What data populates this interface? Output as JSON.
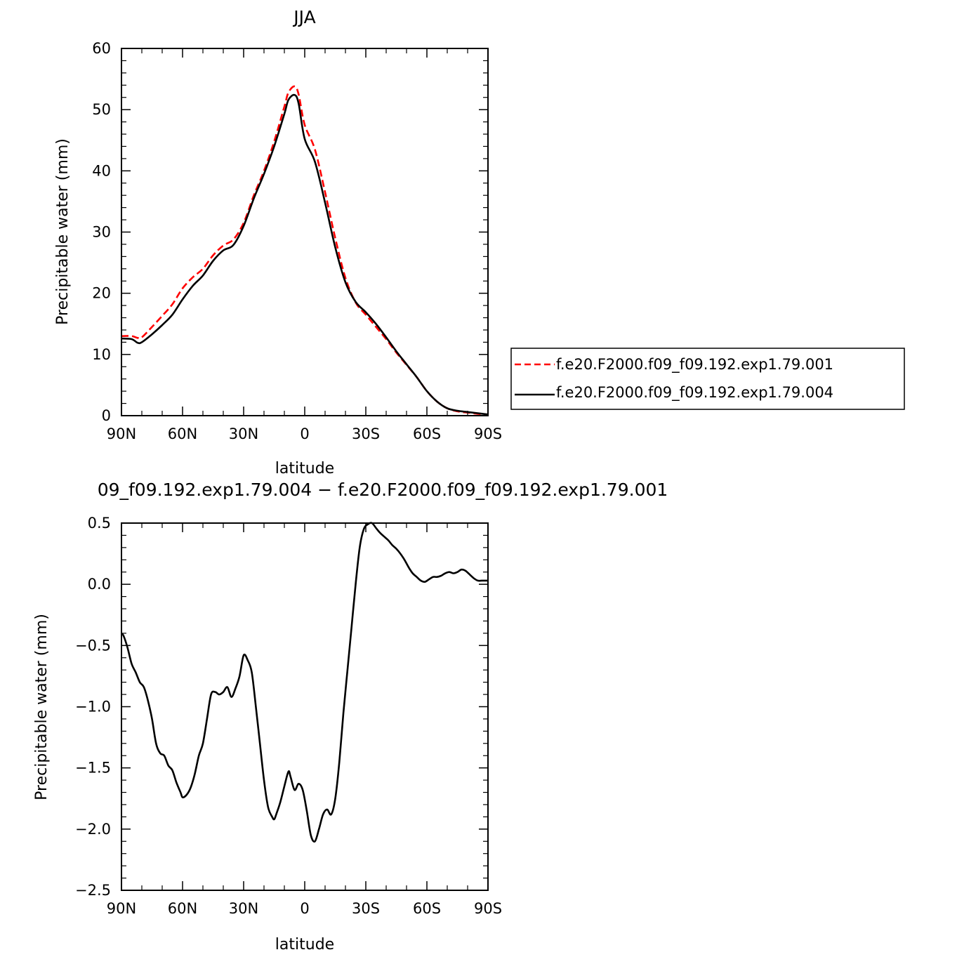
{
  "chart_data": [
    {
      "type": "line",
      "title": "JJA",
      "xlabel": "latitude",
      "ylabel": "Precipitable water (mm)",
      "xlim": [
        90,
        -90
      ],
      "ylim": [
        0,
        60
      ],
      "xticks": [
        90,
        60,
        30,
        0,
        -30,
        -60,
        -90
      ],
      "xtick_labels": [
        "90N",
        "60N",
        "30N",
        "0",
        "30S",
        "60S",
        "90S"
      ],
      "yticks": [
        0,
        10,
        20,
        30,
        40,
        50,
        60
      ],
      "ytick_labels": [
        "0",
        "10",
        "20",
        "30",
        "40",
        "50",
        "60"
      ],
      "legend_position": "right",
      "series": [
        {
          "name": "f.e20.F2000.f09_f09.192.exp1.79.001",
          "color": "#ff0000",
          "dash": "dashed",
          "x": [
            90,
            85,
            82,
            80,
            75,
            70,
            65,
            60,
            55,
            50,
            45,
            40,
            35,
            30,
            25,
            20,
            15,
            10,
            8,
            5,
            3,
            0,
            -5,
            -10,
            -15,
            -20,
            -25,
            -30,
            -35,
            -40,
            -45,
            -50,
            -55,
            -60,
            -65,
            -70,
            -75,
            -80,
            -85,
            -90
          ],
          "y": [
            13.0,
            13.0,
            12.7,
            12.8,
            14.5,
            16.3,
            18.2,
            20.8,
            22.6,
            24.0,
            26.2,
            27.8,
            28.8,
            31.5,
            36.0,
            40.0,
            44.8,
            50.5,
            52.8,
            53.8,
            52.5,
            47.5,
            43.5,
            36.5,
            29.0,
            22.5,
            18.5,
            16.5,
            14.5,
            12.5,
            10.3,
            8.3,
            6.3,
            4.0,
            2.3,
            1.2,
            0.7,
            0.5,
            0.3,
            0.2
          ]
        },
        {
          "name": "f.e20.F2000.f09_f09.192.exp1.79.004",
          "color": "#000000",
          "dash": "solid",
          "x": [
            90,
            85,
            82,
            80,
            75,
            70,
            65,
            60,
            55,
            50,
            45,
            40,
            35,
            30,
            25,
            20,
            15,
            10,
            8,
            5,
            3,
            0,
            -5,
            -10,
            -15,
            -20,
            -25,
            -30,
            -35,
            -40,
            -45,
            -50,
            -55,
            -60,
            -65,
            -70,
            -75,
            -80,
            -85,
            -90
          ],
          "y": [
            12.6,
            12.5,
            11.9,
            12.0,
            13.3,
            14.8,
            16.5,
            19.0,
            21.2,
            22.9,
            25.3,
            27.0,
            27.9,
            31.0,
            35.5,
            39.5,
            44.0,
            49.3,
            51.6,
            52.4,
            51.0,
            45.2,
            41.5,
            34.8,
            27.5,
            21.8,
            18.6,
            16.9,
            15.0,
            12.8,
            10.5,
            8.4,
            6.3,
            4.0,
            2.3,
            1.2,
            0.8,
            0.6,
            0.4,
            0.2
          ]
        }
      ]
    },
    {
      "type": "line",
      "title": "09_f09.192.exp1.79.004 − f.e20.F2000.f09_f09.192.exp1.79.001",
      "xlabel": "latitude",
      "ylabel": "Precipitable water (mm)",
      "xlim": [
        90,
        -90
      ],
      "ylim": [
        -2.5,
        0.5
      ],
      "xticks": [
        90,
        60,
        30,
        0,
        -30,
        -60,
        -90
      ],
      "xtick_labels": [
        "90N",
        "60N",
        "30N",
        "0",
        "30S",
        "60S",
        "90S"
      ],
      "yticks": [
        0.5,
        0.0,
        -0.5,
        -1.0,
        -1.5,
        -2.0,
        -2.5
      ],
      "ytick_labels": [
        "0.5",
        "0.0",
        "−0.5",
        "−1.0",
        "−1.5",
        "−2.0",
        "−2.5"
      ],
      "series": [
        {
          "color": "#000000",
          "dash": "solid",
          "x": [
            90,
            89,
            87,
            85,
            83,
            81,
            79,
            77,
            75,
            73,
            71,
            69,
            67,
            65,
            63,
            61,
            60,
            58,
            56,
            54,
            52,
            50,
            48,
            46,
            44,
            42,
            40,
            38,
            36,
            34,
            32,
            30,
            28,
            26,
            24,
            22,
            20,
            18,
            16,
            15,
            14,
            12,
            10,
            8,
            7,
            5,
            3,
            1,
            -1,
            -3,
            -5,
            -7,
            -9,
            -11,
            -13,
            -15,
            -17,
            -19,
            -21,
            -23,
            -25,
            -27,
            -29,
            -31,
            -33,
            -35,
            -37,
            -39,
            -41,
            -43,
            -45,
            -47,
            -49,
            -51,
            -53,
            -55,
            -57,
            -59,
            -61,
            -63,
            -65,
            -67,
            -69,
            -71,
            -73,
            -75,
            -77,
            -79,
            -81,
            -83,
            -85,
            -87,
            -89,
            -90
          ],
          "y": [
            -0.41,
            -0.42,
            -0.52,
            -0.65,
            -0.72,
            -0.8,
            -0.84,
            -0.95,
            -1.1,
            -1.3,
            -1.38,
            -1.4,
            -1.48,
            -1.52,
            -1.62,
            -1.7,
            -1.74,
            -1.72,
            -1.66,
            -1.55,
            -1.4,
            -1.3,
            -1.1,
            -0.9,
            -0.88,
            -0.9,
            -0.88,
            -0.84,
            -0.92,
            -0.85,
            -0.75,
            -0.58,
            -0.62,
            -0.72,
            -1.0,
            -1.3,
            -1.6,
            -1.82,
            -1.9,
            -1.92,
            -1.88,
            -1.78,
            -1.65,
            -1.53,
            -1.57,
            -1.68,
            -1.63,
            -1.68,
            -1.85,
            -2.05,
            -2.1,
            -2.0,
            -1.88,
            -1.84,
            -1.88,
            -1.75,
            -1.45,
            -1.05,
            -0.7,
            -0.35,
            0.0,
            0.3,
            0.45,
            0.49,
            0.5,
            0.46,
            0.42,
            0.39,
            0.36,
            0.32,
            0.29,
            0.25,
            0.2,
            0.14,
            0.09,
            0.06,
            0.03,
            0.02,
            0.04,
            0.06,
            0.06,
            0.07,
            0.09,
            0.1,
            0.09,
            0.1,
            0.12,
            0.11,
            0.08,
            0.05,
            0.03,
            0.03,
            0.03,
            0.03
          ]
        }
      ]
    }
  ]
}
